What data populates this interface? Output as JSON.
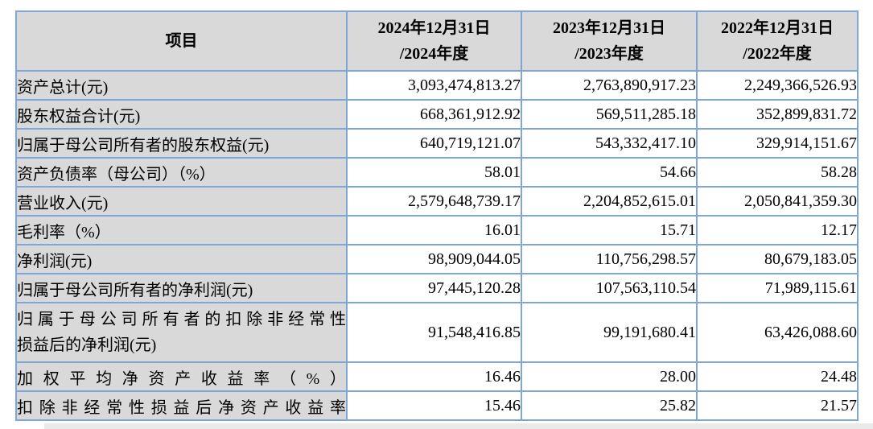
{
  "table": {
    "item_header": "项目",
    "period_headers": [
      {
        "line1": "2024年12月31日",
        "line2": "/2024年度"
      },
      {
        "line1": "2023年12月31日",
        "line2": "/2023年度"
      },
      {
        "line1": "2022年12月31日",
        "line2": "/2022年度"
      }
    ],
    "rows": [
      {
        "label": "资产总计(元)",
        "values": [
          "3,093,474,813.27",
          "2,763,890,917.23",
          "2,249,366,526.93"
        ]
      },
      {
        "label": "股东权益合计(元)",
        "values": [
          "668,361,912.92",
          "569,511,285.18",
          "352,899,831.72"
        ]
      },
      {
        "label": "归属于母公司所有者的股东权益(元)",
        "values": [
          "640,719,121.07",
          "543,332,417.10",
          "329,914,151.67"
        ]
      },
      {
        "label": "资产负债率（母公司）（%）",
        "values": [
          "58.01",
          "54.66",
          "58.28"
        ]
      },
      {
        "label": "营业收入(元)",
        "values": [
          "2,579,648,739.17",
          "2,204,852,615.01",
          "2,050,841,359.30"
        ]
      },
      {
        "label": "毛利率（%）",
        "values": [
          "16.01",
          "15.71",
          "12.17"
        ]
      },
      {
        "label": "净利润(元)",
        "values": [
          "98,909,044.05",
          "110,756,298.57",
          "80,679,183.05"
        ]
      },
      {
        "label": "归属于母公司所有者的净利润(元)",
        "values": [
          "97,445,120.28",
          "107,563,110.54",
          "71,989,115.61"
        ]
      },
      {
        "label_line1": "归属于母公司所有者的扣除非经常性",
        "label_line2": "损益后的净利润(元)",
        "values": [
          "91,548,416.85",
          "99,191,680.41",
          "63,426,088.60"
        ]
      },
      {
        "label": "加权平均净资产收益率（%）",
        "values": [
          "16.46",
          "28.00",
          "24.48"
        ]
      },
      {
        "label": "扣除非经常性损益后净资产收益率",
        "values": [
          "15.46",
          "25.82",
          "21.57"
        ]
      }
    ],
    "colors": {
      "border_blue": "#7ea6d6",
      "header_gray": "#d9d9d9",
      "bottom_strip_gray": "#eaeaea"
    }
  }
}
